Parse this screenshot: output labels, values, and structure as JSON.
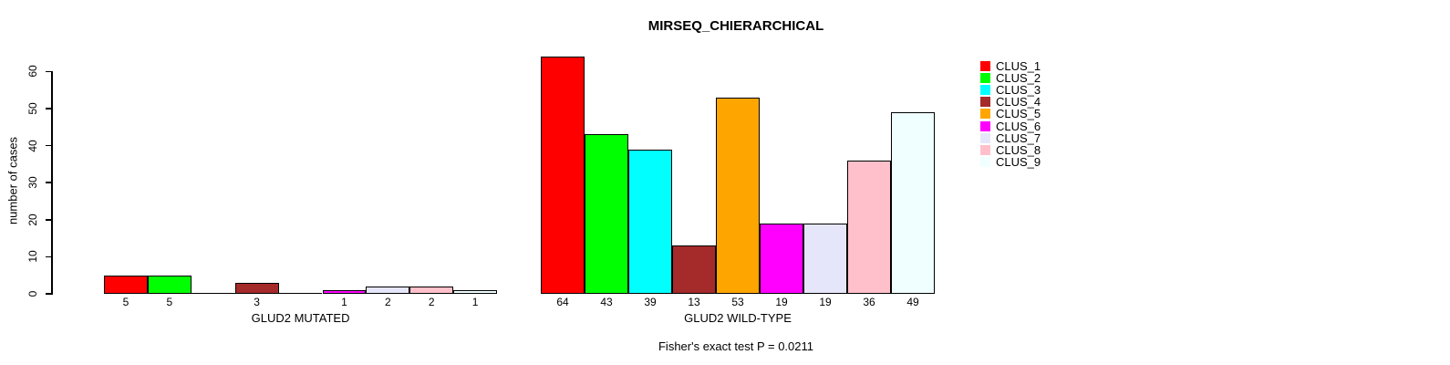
{
  "chart_data": {
    "type": "bar",
    "title": "MIRSEQ_CHIERARCHICAL",
    "ylabel": "number of cases",
    "xlabel": "",
    "ylim": [
      0,
      64
    ],
    "yticks": [
      0,
      10,
      20,
      30,
      40,
      50,
      60
    ],
    "grid": false,
    "legend_position": "right-outside",
    "series_names": [
      "CLUS_1",
      "CLUS_2",
      "CLUS_3",
      "CLUS_4",
      "CLUS_5",
      "CLUS_6",
      "CLUS_7",
      "CLUS_8",
      "CLUS_9"
    ],
    "colors": [
      "#FF0000",
      "#00FF00",
      "#00FFFF",
      "#A52A2A",
      "#FFA500",
      "#FF00FF",
      "#E6E6FA",
      "#FFC0CB",
      "#F0FFFF"
    ],
    "bar_border_color": "#000000",
    "groups": [
      {
        "label": "GLUD2 MUTATED",
        "values": [
          5,
          5,
          0,
          3,
          0,
          1,
          2,
          2,
          1
        ]
      },
      {
        "label": "GLUD2 WILD-TYPE",
        "values": [
          64,
          43,
          39,
          13,
          53,
          19,
          19,
          36,
          49
        ]
      }
    ],
    "value_labels_shown_for_zero": false,
    "annotation": "Fisher's exact test P = 0.0211"
  }
}
